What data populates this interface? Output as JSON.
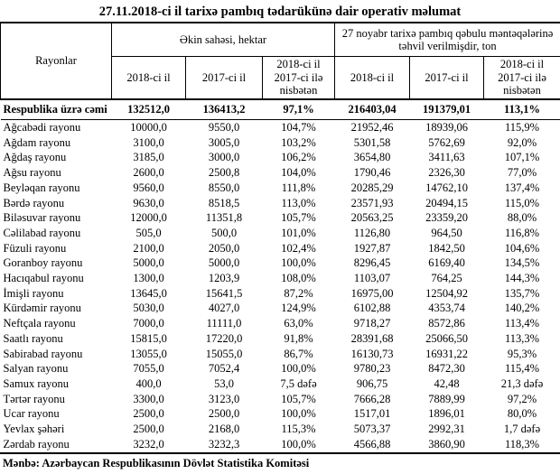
{
  "title": "27.11.2018-ci il tarixə pambıq tədarükünə dair operativ məlumat",
  "table": {
    "corner_header": "Rayonlar",
    "group1_header": "Əkin sahəsi, hektar",
    "group2_header": "27 noyabr tarixə pambıq qəbulu məntəqələrinə təhvil verilmişdir, ton",
    "sub_headers": [
      "2018-ci il",
      "2017-ci il",
      "2018-ci il 2017-ci ilə nisbətən",
      "2018-ci il",
      "2017-ci il",
      "2018-ci il 2017-ci ilə nisbətən"
    ],
    "total_row": {
      "label": "Respublika üzrə cəmi",
      "values": [
        "132512,0",
        "136413,2",
        "97,1%",
        "216403,04",
        "191379,01",
        "113,1%"
      ]
    },
    "rows": [
      {
        "label": "Ağcabədi rayonu",
        "values": [
          "10000,0",
          "9550,0",
          "104,7%",
          "21952,46",
          "18939,06",
          "115,9%"
        ]
      },
      {
        "label": "Ağdam rayonu",
        "values": [
          "3100,0",
          "3005,0",
          "103,2%",
          "5301,58",
          "5762,69",
          "92,0%"
        ]
      },
      {
        "label": "Ağdaş rayonu",
        "values": [
          "3185,0",
          "3000,0",
          "106,2%",
          "3654,80",
          "3411,63",
          "107,1%"
        ]
      },
      {
        "label": "Ağsu rayonu",
        "values": [
          "2600,0",
          "2500,8",
          "104,0%",
          "1790,46",
          "2326,30",
          "77,0%"
        ]
      },
      {
        "label": "Beyləqan rayonu",
        "values": [
          "9560,0",
          "8550,0",
          "111,8%",
          "20285,29",
          "14762,10",
          "137,4%"
        ]
      },
      {
        "label": "Bərdə rayonu",
        "values": [
          "9630,0",
          "8518,5",
          "113,0%",
          "23571,93",
          "20494,15",
          "115,0%"
        ]
      },
      {
        "label": "Biləsuvar rayonu",
        "values": [
          "12000,0",
          "11351,8",
          "105,7%",
          "20563,25",
          "23359,20",
          "88,0%"
        ]
      },
      {
        "label": "Cəlilabad rayonu",
        "values": [
          "505,0",
          "500,0",
          "101,0%",
          "1126,80",
          "964,50",
          "116,8%"
        ]
      },
      {
        "label": "Füzuli rayonu",
        "values": [
          "2100,0",
          "2050,0",
          "102,4%",
          "1927,87",
          "1842,50",
          "104,6%"
        ]
      },
      {
        "label": "Goranboy rayonu",
        "values": [
          "5000,0",
          "5000,0",
          "100,0%",
          "8296,45",
          "6169,40",
          "134,5%"
        ]
      },
      {
        "label": "Hacıqabul rayonu",
        "values": [
          "1300,0",
          "1203,9",
          "108,0%",
          "1103,07",
          "764,25",
          "144,3%"
        ]
      },
      {
        "label": "İmişli rayonu",
        "values": [
          "13645,0",
          "15641,5",
          "87,2%",
          "16975,00",
          "12504,92",
          "135,7%"
        ]
      },
      {
        "label": "Kürdəmir rayonu",
        "values": [
          "5030,0",
          "4027,0",
          "124,9%",
          "6102,88",
          "4353,74",
          "140,2%"
        ]
      },
      {
        "label": "Neftçala rayonu",
        "values": [
          "7000,0",
          "11111,0",
          "63,0%",
          "9718,27",
          "8572,86",
          "113,4%"
        ]
      },
      {
        "label": "Saatlı rayonu",
        "values": [
          "15815,0",
          "17220,0",
          "91,8%",
          "28391,68",
          "25066,50",
          "113,3%"
        ]
      },
      {
        "label": "Sabirabad rayonu",
        "values": [
          "13055,0",
          "15055,0",
          "86,7%",
          "16130,73",
          "16931,22",
          "95,3%"
        ]
      },
      {
        "label": "Salyan rayonu",
        "values": [
          "7055,0",
          "7052,4",
          "100,0%",
          "9780,23",
          "8472,30",
          "115,4%"
        ]
      },
      {
        "label": "Samux rayonu",
        "values": [
          "400,0",
          "53,0",
          "7,5 dəfə",
          "906,75",
          "42,48",
          "21,3 dəfə"
        ]
      },
      {
        "label": "Tərtər rayonu",
        "values": [
          "3300,0",
          "3123,0",
          "105,7%",
          "7666,28",
          "7889,99",
          "97,2%"
        ]
      },
      {
        "label": "Ucar rayonu",
        "values": [
          "2500,0",
          "2500,0",
          "100,0%",
          "1517,01",
          "1896,01",
          "80,0%"
        ]
      },
      {
        "label": "Yevlax şəhəri",
        "values": [
          "2500,0",
          "2168,0",
          "115,3%",
          "5073,37",
          "2992,31",
          "1,7 dəfə"
        ]
      },
      {
        "label": "Zərdab rayonu",
        "values": [
          "3232,0",
          "3232,3",
          "100,0%",
          "4566,88",
          "3860,90",
          "118,3%"
        ]
      }
    ]
  },
  "source": "Mənbə: Azərbaycan Respublikasının Dövlət Statistika Komitəsi"
}
